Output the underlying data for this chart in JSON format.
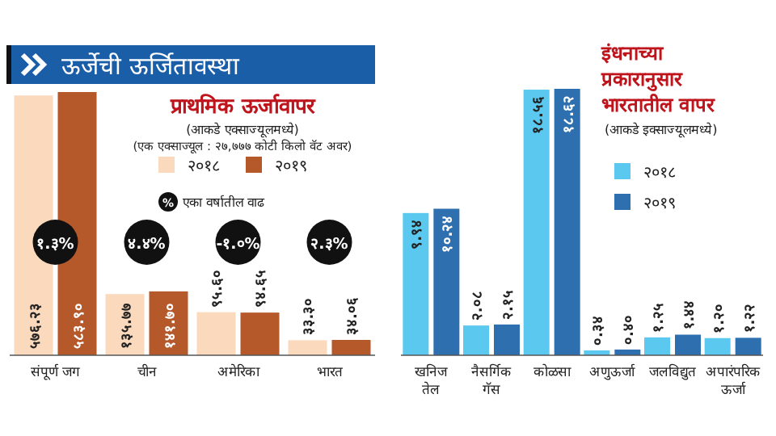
{
  "chart_data": [
    {
      "type": "bar",
      "title": "प्राथमिक ऊर्जावापर",
      "subtitle": "(आकडे एक्साज्यूलमध्ये)",
      "categories": [
        "संपूर्ण जग",
        "चीन",
        "अमेरिका",
        "भारत"
      ],
      "legend": "top",
      "series": [
        {
          "name": "२०१८",
          "color": "#fbd9bd",
          "values": [
            576.23,
            135.77,
            95.6,
            33.3
          ],
          "value_labels": [
            "५७६.२३",
            "१३५.७७",
            "९५.६०",
            "३३.३०"
          ]
        },
        {
          "name": "२०१९",
          "color": "#b5582a",
          "values": [
            583.9,
            141.7,
            94.65,
            34.06
          ],
          "value_labels": [
            "५८३.९०",
            "१४१.७०",
            "९४.६५",
            "३४.०६"
          ]
        }
      ],
      "annotations": [
        "ऊर्जेची ऊर्जितावस्था",
        "(एक एक्साज्यूल : २७,७७७ कोटी किलो वॅट अवर)",
        "%",
        "एका वर्षातील वाढ",
        {
          "text": "१.३%",
          "x": "संपूर्ण जग"
        },
        {
          "text": "४.४%",
          "x": "चीन"
        },
        {
          "text": "-१.०%",
          "x": "अमेरिका"
        },
        {
          "text": "२.३%",
          "x": "भारत"
        }
      ]
    },
    {
      "type": "bar",
      "title": "इंधनाच्या प्रकारानुसार भारतातील वापर",
      "subtitle": "(आकडे इक्साज्यूलमध्ये)",
      "categories": [
        "खनिज तेल",
        "नैसर्गिक गॅस",
        "कोळसा",
        "अणुऊर्जा",
        "जलविद्युत",
        "अपारंपरिक ऊर्जा"
      ],
      "legend": "right",
      "series": [
        {
          "name": "२०१८",
          "color": "#5bc8f0",
          "values": [
            9.94,
            2.08,
            18.56,
            0.34,
            1.25,
            1.2
          ],
          "value_labels": [
            "९.९४",
            "२.०८",
            "१८.५६",
            "०.३४",
            "१.२५",
            "१.२०"
          ]
        },
        {
          "name": "२०१९",
          "color": "#2e6fb0",
          "values": [
            10.24,
            2.15,
            18.62,
            0.4,
            1.44,
            1.22
          ],
          "value_labels": [
            "१०.२४",
            "२.१५",
            "१८.६२",
            "०.४०",
            "१.४४",
            "१.२२"
          ]
        }
      ]
    }
  ]
}
